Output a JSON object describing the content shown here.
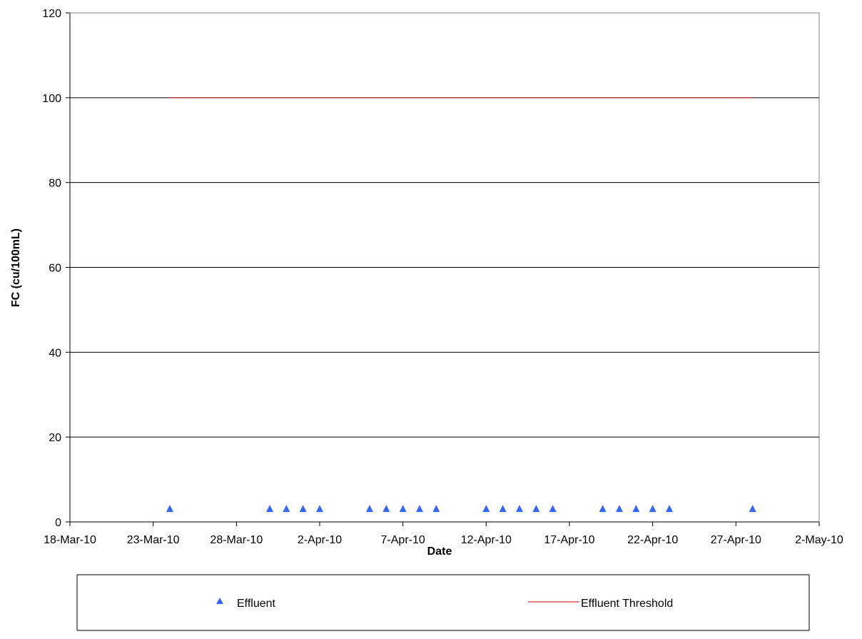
{
  "chart_data": {
    "type": "scatter",
    "xlabel": "Date",
    "ylabel": "FC (cu/100mL)",
    "xlim": [
      "2010-03-18",
      "2010-05-02"
    ],
    "ylim": [
      0,
      120
    ],
    "x_ticks": [
      "18-Mar-10",
      "23-Mar-10",
      "28-Mar-10",
      "2-Apr-10",
      "7-Apr-10",
      "12-Apr-10",
      "17-Apr-10",
      "22-Apr-10",
      "27-Apr-10",
      "2-May-10"
    ],
    "y_ticks": [
      "0",
      "20",
      "40",
      "60",
      "80",
      "100",
      "120"
    ],
    "grid": "horizontal",
    "legend": "bottom",
    "series": [
      {
        "name": "Effluent",
        "kind": "scatter",
        "marker": "triangle",
        "color": "#3366ff",
        "points": [
          [
            "2010-03-24",
            3
          ],
          [
            "2010-03-30",
            3
          ],
          [
            "2010-03-31",
            3
          ],
          [
            "2010-04-01",
            3
          ],
          [
            "2010-04-02",
            3
          ],
          [
            "2010-04-05",
            3
          ],
          [
            "2010-04-06",
            3
          ],
          [
            "2010-04-07",
            3
          ],
          [
            "2010-04-08",
            3
          ],
          [
            "2010-04-09",
            3
          ],
          [
            "2010-04-12",
            3
          ],
          [
            "2010-04-13",
            3
          ],
          [
            "2010-04-14",
            3
          ],
          [
            "2010-04-15",
            3
          ],
          [
            "2010-04-16",
            3
          ],
          [
            "2010-04-19",
            3
          ],
          [
            "2010-04-20",
            3
          ],
          [
            "2010-04-21",
            3
          ],
          [
            "2010-04-22",
            3
          ],
          [
            "2010-04-23",
            3
          ],
          [
            "2010-04-28",
            3
          ]
        ]
      },
      {
        "name": "Effluent Threshold",
        "kind": "line",
        "color": "#cc0000",
        "points": [
          [
            "2010-03-24",
            100
          ],
          [
            "2010-04-28",
            100
          ]
        ]
      }
    ]
  }
}
